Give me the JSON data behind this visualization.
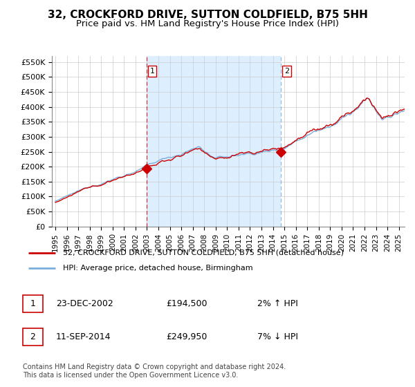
{
  "title": "32, CROCKFORD DRIVE, SUTTON COLDFIELD, B75 5HH",
  "subtitle": "Price paid vs. HM Land Registry's House Price Index (HPI)",
  "ylabel_ticks": [
    "£0",
    "£50K",
    "£100K",
    "£150K",
    "£200K",
    "£250K",
    "£300K",
    "£350K",
    "£400K",
    "£450K",
    "£500K",
    "£550K"
  ],
  "ytick_values": [
    0,
    50000,
    100000,
    150000,
    200000,
    250000,
    300000,
    350000,
    400000,
    450000,
    500000,
    550000
  ],
  "ylim": [
    0,
    570000
  ],
  "xlim_start": 1994.7,
  "xlim_end": 2025.5,
  "xticks": [
    1995,
    1996,
    1997,
    1998,
    1999,
    2000,
    2001,
    2002,
    2003,
    2004,
    2005,
    2006,
    2007,
    2008,
    2009,
    2010,
    2011,
    2012,
    2013,
    2014,
    2015,
    2016,
    2017,
    2018,
    2019,
    2020,
    2021,
    2022,
    2023,
    2024,
    2025
  ],
  "sale1_x": 2002.97,
  "sale1_y": 194500,
  "sale1_label": "1",
  "sale2_x": 2014.7,
  "sale2_y": 249950,
  "sale2_label": "2",
  "vline1_x": 2002.97,
  "vline2_x": 2014.7,
  "red_line_color": "#cc0000",
  "blue_line_color": "#7aaddb",
  "fill_color": "#ddeeff",
  "vline_color": "#cc0000",
  "vline2_color": "#7aaddb",
  "marker_color": "#cc0000",
  "background_color": "#ffffff",
  "grid_color": "#cccccc",
  "legend_label1": "32, CROCKFORD DRIVE, SUTTON COLDFIELD, B75 5HH (detached house)",
  "legend_label2": "HPI: Average price, detached house, Birmingham",
  "table_row1": [
    "1",
    "23-DEC-2002",
    "£194,500",
    "2% ↑ HPI"
  ],
  "table_row2": [
    "2",
    "11-SEP-2014",
    "£249,950",
    "7% ↓ HPI"
  ],
  "footnote": "Contains HM Land Registry data © Crown copyright and database right 2024.\nThis data is licensed under the Open Government Licence v3.0.",
  "title_fontsize": 11,
  "subtitle_fontsize": 9.5
}
